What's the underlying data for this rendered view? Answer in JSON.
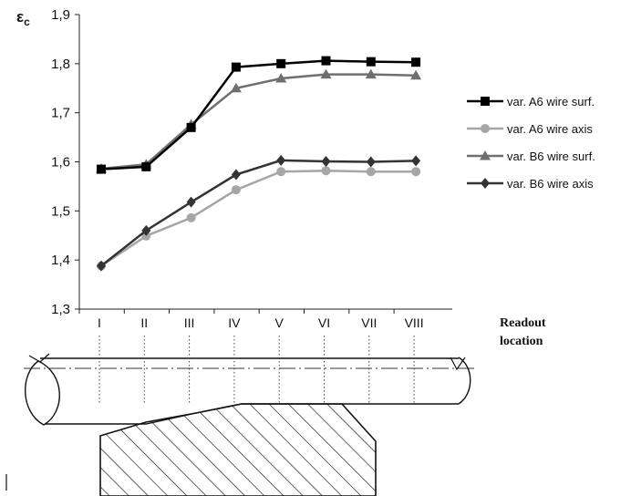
{
  "chart_data": {
    "type": "line",
    "ylabel": "εc",
    "ylabel_symbol": "ε",
    "ylabel_subscript": "c",
    "xlabel": "Readout location",
    "xlabel_lines": [
      "Readout",
      "location"
    ],
    "categories": [
      "I",
      "II",
      "III",
      "IV",
      "V",
      "VI",
      "VII",
      "VIII"
    ],
    "ylim": [
      1.3,
      1.9
    ],
    "yticks": [
      1.3,
      1.4,
      1.5,
      1.6,
      1.7,
      1.8,
      1.9
    ],
    "ytick_labels": [
      "1,3",
      "1,4",
      "1,5",
      "1,6",
      "1,7",
      "1,8",
      "1,9"
    ],
    "grid": false,
    "legend_position": "right",
    "series": [
      {
        "name": "var. A6 wire surf.",
        "marker": "square",
        "color": "#000000",
        "values": [
          1.585,
          1.59,
          1.67,
          1.793,
          1.8,
          1.806,
          1.804,
          1.803
        ]
      },
      {
        "name": "var. A6 wire axis",
        "marker": "circle",
        "color": "#a6a6a6",
        "values": [
          1.388,
          1.449,
          1.486,
          1.543,
          1.58,
          1.582,
          1.58,
          1.58
        ]
      },
      {
        "name": "var. B6 wire surf.",
        "marker": "triangle",
        "color": "#6f6f6f",
        "values": [
          1.586,
          1.595,
          1.676,
          1.75,
          1.77,
          1.778,
          1.778,
          1.776
        ]
      },
      {
        "name": "var. B6 wire axis",
        "marker": "diamond",
        "color": "#333333",
        "values": [
          1.388,
          1.46,
          1.518,
          1.574,
          1.603,
          1.601,
          1.6,
          1.602
        ]
      }
    ]
  }
}
